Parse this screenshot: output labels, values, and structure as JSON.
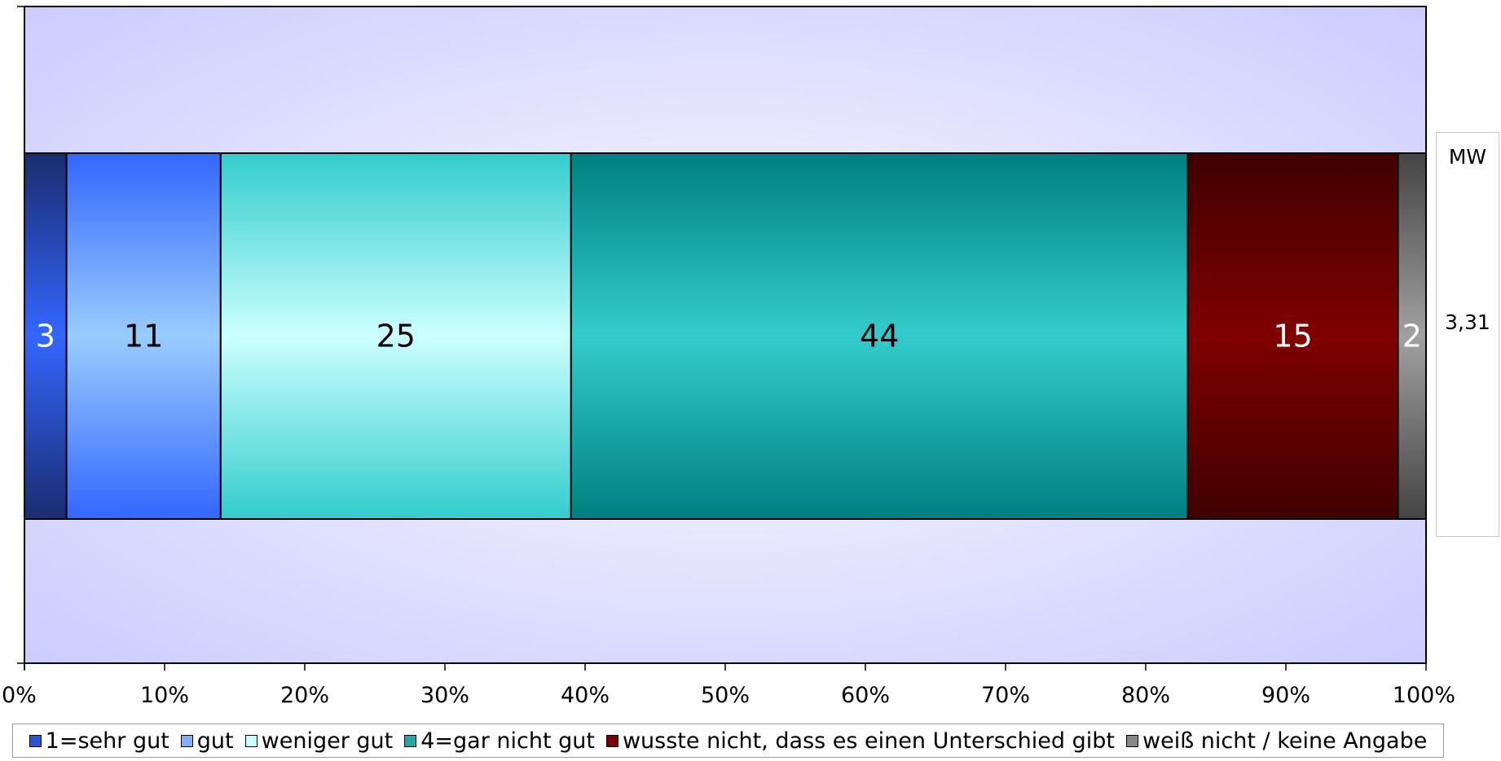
{
  "chart_data": {
    "type": "bar",
    "orientation": "horizontal",
    "stacked": true,
    "x_ticks": [
      "0%",
      "10%",
      "20%",
      "30%",
      "40%",
      "50%",
      "60%",
      "70%",
      "80%",
      "90%",
      "100%"
    ],
    "xlim": [
      0,
      100
    ],
    "grid": false,
    "legend_position": "bottom",
    "series": [
      {
        "name": "1=sehr gut",
        "value": 3,
        "label": "3",
        "color": "#2a55d8",
        "label_color": "#ffffff"
      },
      {
        "name": "gut",
        "value": 11,
        "label": "11",
        "color": "#7fb0ff",
        "label_color": "#000000"
      },
      {
        "name": "weniger gut",
        "value": 25,
        "label": "25",
        "color": "#c8ffff",
        "label_color": "#000000"
      },
      {
        "name": "4=gar nicht gut",
        "value": 44,
        "label": "44",
        "color": "#22a8a8",
        "label_color": "#000000"
      },
      {
        "name": "wusste nicht, dass es einen Unterschied gibt",
        "value": 15,
        "label": "15",
        "color": "#7a0000",
        "label_color": "#ffffff"
      },
      {
        "name": "weiß nicht / keine Angabe",
        "value": 2,
        "label": "2",
        "color": "#888888",
        "label_color": "#ffffff"
      }
    ],
    "mean": {
      "header": "MW",
      "value": "3,31"
    }
  }
}
